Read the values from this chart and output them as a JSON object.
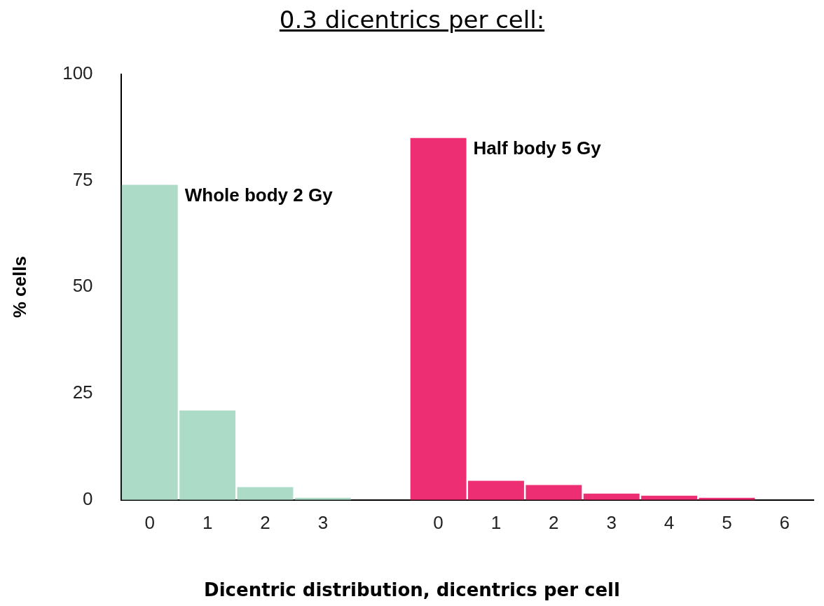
{
  "chart_data": {
    "type": "bar",
    "title": "0.3 dicentrics per cell:",
    "xlabel": "Dicentric distribution, dicentrics per cell",
    "ylabel": "% cells",
    "categories": [
      "0",
      "1",
      "2",
      "3",
      null,
      "0",
      "1",
      "2",
      "3",
      "4",
      "5",
      "6"
    ],
    "series": [
      {
        "name": "Whole body 2 Gy",
        "color": "#acdcc8",
        "values": [
          74,
          21,
          3,
          0.5,
          null,
          null,
          null,
          null,
          null,
          null,
          null,
          null
        ]
      },
      {
        "name": "Half body 5 Gy",
        "color": "#ee2e72",
        "values": [
          null,
          null,
          null,
          null,
          null,
          85,
          4.5,
          3.5,
          1.5,
          1,
          0.5,
          0
        ]
      }
    ],
    "ylim": [
      0,
      100
    ],
    "yticks": [
      0,
      25,
      50,
      75,
      100
    ],
    "grid": false,
    "legend": false
  }
}
